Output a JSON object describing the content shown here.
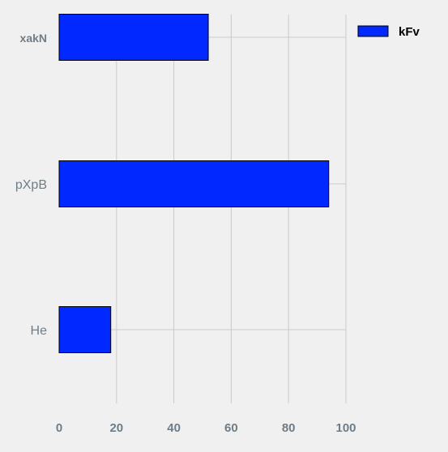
{
  "chart_data": {
    "type": "bar",
    "orientation": "horizontal",
    "categories": [
      "xakN",
      "pXpB",
      "He"
    ],
    "series": [
      {
        "name": "kFv",
        "values": [
          52,
          94,
          18
        ],
        "color": "#0028ff"
      }
    ],
    "xlim": [
      0,
      100
    ],
    "xticks": [
      "0",
      "20",
      "40",
      "60",
      "80",
      "100"
    ],
    "title": "",
    "xlabel": "",
    "ylabel": "",
    "grid": true,
    "legend": {
      "placement": "top-right",
      "entries": [
        "kFv"
      ]
    },
    "colors": {
      "background": "#f0f0f0",
      "grid": "#cbcbcb",
      "tick_label": "#6e7d87"
    }
  }
}
